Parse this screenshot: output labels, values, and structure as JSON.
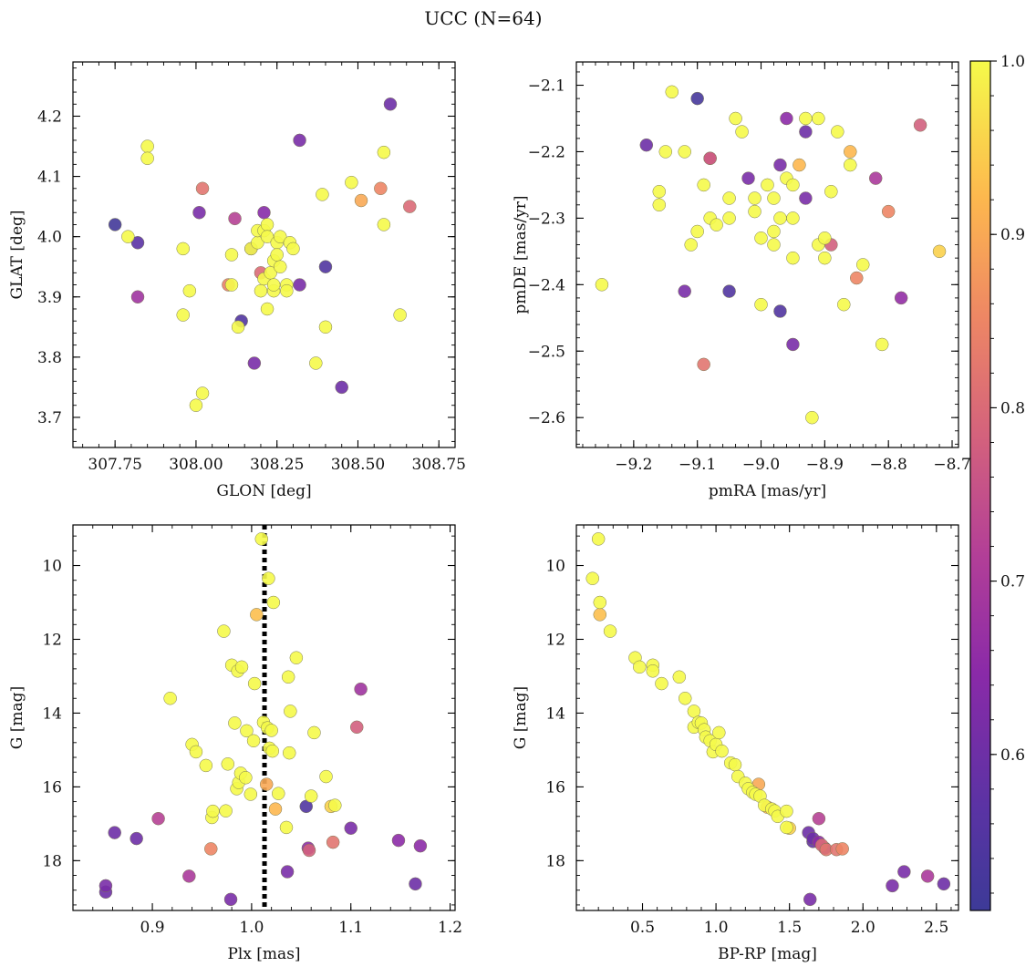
{
  "title": "UCC (N=64)",
  "colorbar": {
    "cmap": "plasma",
    "range": [
      0.51,
      1.0
    ],
    "ticks": [
      0.6,
      0.7,
      0.8,
      0.9,
      1.0
    ],
    "tick_labels": [
      "0.6",
      "0.7",
      "0.8",
      "0.9",
      "1.0"
    ]
  },
  "chart_data": [
    {
      "type": "scatter",
      "xlabel": "GLON [deg]",
      "ylabel": "GLAT [deg]",
      "xlim": [
        307.62,
        308.8
      ],
      "ylim": [
        3.65,
        4.29
      ],
      "xticks": [
        307.75,
        308.0,
        308.25,
        308.5,
        308.75
      ],
      "xtick_labels": [
        "307.75",
        "308.00",
        "308.25",
        "308.50",
        "308.75"
      ],
      "yticks": [
        3.7,
        3.8,
        3.9,
        4.0,
        4.1,
        4.2
      ],
      "ytick_labels": [
        "3.7",
        "3.8",
        "3.9",
        "4.0",
        "4.1",
        "4.2"
      ],
      "points": [
        [
          307.75,
          4.02,
          0.52
        ],
        [
          307.82,
          3.99,
          0.57
        ],
        [
          307.79,
          4.0,
          1.0
        ],
        [
          307.82,
          3.9,
          0.68
        ],
        [
          307.85,
          4.15,
          1.0
        ],
        [
          307.85,
          4.13,
          1.0
        ],
        [
          307.96,
          3.98,
          1.0
        ],
        [
          307.96,
          3.87,
          1.0
        ],
        [
          307.98,
          3.91,
          1.0
        ],
        [
          308.0,
          3.72,
          1.0
        ],
        [
          308.01,
          4.04,
          0.62
        ],
        [
          308.02,
          3.74,
          1.0
        ],
        [
          308.02,
          4.08,
          0.82
        ],
        [
          308.1,
          3.92,
          0.84
        ],
        [
          308.11,
          3.92,
          1.0
        ],
        [
          308.11,
          3.97,
          1.0
        ],
        [
          308.12,
          4.03,
          0.72
        ],
        [
          308.13,
          3.85,
          1.0
        ],
        [
          308.14,
          3.86,
          0.55
        ],
        [
          308.17,
          3.98,
          0.62
        ],
        [
          308.17,
          3.98,
          1.0
        ],
        [
          308.18,
          3.79,
          0.62
        ],
        [
          308.19,
          3.99,
          1.0
        ],
        [
          308.19,
          4.01,
          1.0
        ],
        [
          308.2,
          3.94,
          0.8
        ],
        [
          308.2,
          3.91,
          1.0
        ],
        [
          308.21,
          4.04,
          0.64
        ],
        [
          308.21,
          4.01,
          1.0
        ],
        [
          308.21,
          3.93,
          1.0
        ],
        [
          308.22,
          3.88,
          1.0
        ],
        [
          308.22,
          4.02,
          1.0
        ],
        [
          308.22,
          4.0,
          1.0
        ],
        [
          308.23,
          3.94,
          1.0
        ],
        [
          308.24,
          3.91,
          1.0
        ],
        [
          308.24,
          3.92,
          1.0
        ],
        [
          308.24,
          3.96,
          1.0
        ],
        [
          308.25,
          3.99,
          1.0
        ],
        [
          308.25,
          3.97,
          1.0
        ],
        [
          308.26,
          3.95,
          1.0
        ],
        [
          308.26,
          4.0,
          1.0
        ],
        [
          308.28,
          3.92,
          1.0
        ],
        [
          308.28,
          3.91,
          1.0
        ],
        [
          308.29,
          3.99,
          1.0
        ],
        [
          308.3,
          3.98,
          1.0
        ],
        [
          308.32,
          4.16,
          0.62
        ],
        [
          308.32,
          3.92,
          0.62
        ],
        [
          308.37,
          3.79,
          1.0
        ],
        [
          308.39,
          4.07,
          1.0
        ],
        [
          308.4,
          3.95,
          0.55
        ],
        [
          308.4,
          3.85,
          1.0
        ],
        [
          308.45,
          3.75,
          0.6
        ],
        [
          308.48,
          4.09,
          1.0
        ],
        [
          308.51,
          4.06,
          0.9
        ],
        [
          308.57,
          4.08,
          0.85
        ],
        [
          308.58,
          4.14,
          1.0
        ],
        [
          308.58,
          4.02,
          1.0
        ],
        [
          308.6,
          4.22,
          0.6
        ],
        [
          308.63,
          3.87,
          1.0
        ],
        [
          308.66,
          4.05,
          0.8
        ]
      ]
    },
    {
      "type": "scatter",
      "xlabel": "pmRA [mas/yr]",
      "ylabel": "pmDE [mas/yr]",
      "xlim": [
        -9.29,
        -8.69
      ],
      "ylim": [
        -2.645,
        -2.065
      ],
      "xticks": [
        -9.2,
        -9.1,
        -9.0,
        -8.9,
        -8.8,
        -8.7
      ],
      "xtick_labels": [
        "−9.2",
        "−9.1",
        "−9.0",
        "−8.9",
        "−8.8",
        "−8.7"
      ],
      "yticks": [
        -2.6,
        -2.5,
        -2.4,
        -2.3,
        -2.2,
        -2.1
      ],
      "ytick_labels": [
        "−2.6",
        "−2.5",
        "−2.4",
        "−2.3",
        "−2.2",
        "−2.1"
      ],
      "points": [
        [
          -9.25,
          -2.4,
          1.0
        ],
        [
          -9.18,
          -2.19,
          0.6
        ],
        [
          -9.16,
          -2.26,
          1.0
        ],
        [
          -9.16,
          -2.28,
          1.0
        ],
        [
          -9.15,
          -2.2,
          1.0
        ],
        [
          -9.14,
          -2.11,
          1.0
        ],
        [
          -9.12,
          -2.2,
          1.0
        ],
        [
          -9.12,
          -2.41,
          0.62
        ],
        [
          -9.11,
          -2.34,
          1.0
        ],
        [
          -9.1,
          -2.32,
          1.0
        ],
        [
          -9.1,
          -2.12,
          0.53
        ],
        [
          -9.09,
          -2.52,
          0.82
        ],
        [
          -9.09,
          -2.25,
          1.0
        ],
        [
          -9.08,
          -2.21,
          0.65
        ],
        [
          -9.08,
          -2.21,
          0.78
        ],
        [
          -9.08,
          -2.3,
          1.0
        ],
        [
          -9.07,
          -2.31,
          1.0
        ],
        [
          -9.05,
          -2.27,
          1.0
        ],
        [
          -9.05,
          -2.3,
          1.0
        ],
        [
          -9.05,
          -2.41,
          0.55
        ],
        [
          -9.04,
          -2.15,
          1.0
        ],
        [
          -9.03,
          -2.17,
          1.0
        ],
        [
          -9.02,
          -2.24,
          0.62
        ],
        [
          -9.01,
          -2.29,
          1.0
        ],
        [
          -9.01,
          -2.27,
          1.0
        ],
        [
          -9.0,
          -2.43,
          1.0
        ],
        [
          -9.0,
          -2.33,
          1.0
        ],
        [
          -8.99,
          -2.25,
          1.0
        ],
        [
          -8.98,
          -2.32,
          1.0
        ],
        [
          -8.98,
          -2.34,
          1.0
        ],
        [
          -8.98,
          -2.27,
          1.0
        ],
        [
          -8.97,
          -2.3,
          1.0
        ],
        [
          -8.97,
          -2.22,
          0.62
        ],
        [
          -8.97,
          -2.44,
          0.55
        ],
        [
          -8.96,
          -2.15,
          0.65
        ],
        [
          -8.96,
          -2.24,
          1.0
        ],
        [
          -8.95,
          -2.25,
          1.0
        ],
        [
          -8.95,
          -2.36,
          1.0
        ],
        [
          -8.95,
          -2.3,
          1.0
        ],
        [
          -8.95,
          -2.49,
          0.62
        ],
        [
          -8.94,
          -2.22,
          0.92
        ],
        [
          -8.93,
          -2.15,
          1.0
        ],
        [
          -8.93,
          -2.27,
          0.62
        ],
        [
          -8.93,
          -2.17,
          0.6
        ],
        [
          -8.92,
          -2.6,
          1.0
        ],
        [
          -8.91,
          -2.34,
          1.0
        ],
        [
          -8.91,
          -2.15,
          1.0
        ],
        [
          -8.9,
          -2.36,
          1.0
        ],
        [
          -8.9,
          -2.33,
          1.0
        ],
        [
          -8.89,
          -2.26,
          1.0
        ],
        [
          -8.89,
          -2.34,
          0.78
        ],
        [
          -8.88,
          -2.17,
          1.0
        ],
        [
          -8.87,
          -2.43,
          1.0
        ],
        [
          -8.86,
          -2.22,
          1.0
        ],
        [
          -8.86,
          -2.2,
          0.92
        ],
        [
          -8.85,
          -2.39,
          0.85
        ],
        [
          -8.84,
          -2.37,
          1.0
        ],
        [
          -8.82,
          -2.24,
          0.7
        ],
        [
          -8.81,
          -2.49,
          1.0
        ],
        [
          -8.8,
          -2.29,
          0.85
        ],
        [
          -8.78,
          -2.42,
          0.66
        ],
        [
          -8.75,
          -2.16,
          0.78
        ],
        [
          -8.72,
          -2.35,
          0.95
        ]
      ]
    },
    {
      "type": "scatter",
      "xlabel": "Plx [mas]",
      "ylabel": "G [mag]",
      "xlim": [
        0.82,
        1.205
      ],
      "ylim": [
        19.35,
        8.9
      ],
      "inverted_y": true,
      "xticks": [
        0.9,
        1.0,
        1.1,
        1.2
      ],
      "xtick_labels": [
        "0.9",
        "1.0",
        "1.1",
        "1.2"
      ],
      "yticks": [
        10,
        12,
        14,
        16,
        18
      ],
      "ytick_labels": [
        "10",
        "12",
        "14",
        "16",
        "18"
      ],
      "vline": 1.013,
      "points": [
        [
          0.853,
          18.68,
          0.62
        ],
        [
          0.853,
          18.85,
          0.6
        ],
        [
          0.862,
          17.24,
          0.6
        ],
        [
          0.884,
          17.4,
          0.6
        ],
        [
          0.906,
          16.86,
          0.72
        ],
        [
          0.918,
          13.6,
          1.0
        ],
        [
          0.937,
          18.42,
          0.7
        ],
        [
          0.94,
          14.85,
          1.0
        ],
        [
          0.944,
          15.05,
          1.0
        ],
        [
          0.954,
          15.42,
          1.0
        ],
        [
          0.959,
          17.68,
          0.85
        ],
        [
          0.96,
          16.83,
          1.0
        ],
        [
          0.961,
          16.66,
          1.0
        ],
        [
          0.972,
          11.78,
          1.0
        ],
        [
          0.974,
          16.65,
          1.0
        ],
        [
          0.976,
          15.38,
          1.0
        ],
        [
          0.979,
          19.05,
          0.62
        ],
        [
          0.98,
          12.7,
          1.0
        ],
        [
          0.983,
          14.27,
          1.0
        ],
        [
          0.985,
          16.05,
          1.0
        ],
        [
          0.986,
          12.86,
          1.0
        ],
        [
          0.987,
          15.88,
          1.0
        ],
        [
          0.989,
          15.63,
          1.0
        ],
        [
          0.99,
          12.75,
          1.0
        ],
        [
          0.994,
          15.75,
          1.0
        ],
        [
          0.995,
          14.48,
          1.0
        ],
        [
          0.999,
          16.2,
          1.0
        ],
        [
          1.002,
          14.75,
          1.0
        ],
        [
          1.003,
          13.2,
          1.0
        ],
        [
          1.005,
          11.33,
          0.93
        ],
        [
          1.01,
          9.28,
          1.0
        ],
        [
          1.012,
          14.25,
          1.0
        ],
        [
          1.015,
          15.93,
          0.9
        ],
        [
          1.016,
          14.4,
          1.0
        ],
        [
          1.017,
          10.35,
          1.0
        ],
        [
          1.018,
          14.95,
          1.0
        ],
        [
          1.02,
          14.47,
          1.0
        ],
        [
          1.021,
          15.03,
          1.0
        ],
        [
          1.022,
          11.0,
          1.0
        ],
        [
          1.024,
          16.6,
          0.92
        ],
        [
          1.027,
          16.18,
          1.0
        ],
        [
          1.035,
          17.1,
          1.0
        ],
        [
          1.036,
          18.3,
          0.62
        ],
        [
          1.037,
          13.02,
          1.0
        ],
        [
          1.038,
          15.08,
          1.0
        ],
        [
          1.039,
          13.95,
          1.0
        ],
        [
          1.045,
          12.5,
          1.0
        ],
        [
          1.055,
          16.53,
          0.55
        ],
        [
          1.057,
          17.66,
          0.65
        ],
        [
          1.058,
          17.72,
          0.78
        ],
        [
          1.06,
          16.25,
          1.0
        ],
        [
          1.063,
          14.53,
          1.0
        ],
        [
          1.075,
          15.72,
          1.0
        ],
        [
          1.08,
          16.53,
          0.95
        ],
        [
          1.082,
          17.5,
          0.82
        ],
        [
          1.084,
          16.5,
          1.0
        ],
        [
          1.1,
          17.12,
          0.62
        ],
        [
          1.106,
          14.38,
          0.78
        ],
        [
          1.11,
          13.35,
          0.68
        ],
        [
          1.148,
          17.45,
          0.65
        ],
        [
          1.165,
          18.63,
          0.6
        ],
        [
          1.17,
          17.6,
          0.65
        ]
      ]
    },
    {
      "type": "scatter",
      "xlabel": "BP-RP [mag]",
      "ylabel": "G [mag]",
      "xlim": [
        0.05,
        2.65
      ],
      "ylim": [
        19.35,
        8.9
      ],
      "inverted_y": true,
      "xticks": [
        0.5,
        1.0,
        1.5,
        2.0,
        2.5
      ],
      "xtick_labels": [
        "0.5",
        "1.0",
        "1.5",
        "2.0",
        "2.5"
      ],
      "yticks": [
        10,
        12,
        14,
        16,
        18
      ],
      "ytick_labels": [
        "10",
        "12",
        "14",
        "16",
        "18"
      ],
      "points": [
        [
          0.16,
          10.35,
          1.0
        ],
        [
          0.2,
          9.28,
          1.0
        ],
        [
          0.21,
          11.0,
          1.0
        ],
        [
          0.21,
          11.33,
          0.93
        ],
        [
          0.28,
          11.78,
          1.0
        ],
        [
          0.45,
          12.5,
          1.0
        ],
        [
          0.48,
          12.75,
          1.0
        ],
        [
          0.57,
          12.7,
          1.0
        ],
        [
          0.57,
          12.86,
          1.0
        ],
        [
          0.63,
          13.2,
          1.0
        ],
        [
          0.75,
          13.02,
          1.0
        ],
        [
          0.79,
          13.6,
          1.0
        ],
        [
          0.85,
          13.95,
          1.0
        ],
        [
          0.85,
          14.38,
          1.0
        ],
        [
          0.88,
          14.25,
          1.0
        ],
        [
          0.9,
          14.27,
          1.0
        ],
        [
          0.92,
          14.45,
          1.0
        ],
        [
          0.93,
          14.65,
          1.0
        ],
        [
          0.96,
          14.75,
          1.0
        ],
        [
          0.98,
          15.05,
          1.0
        ],
        [
          1.0,
          14.85,
          1.0
        ],
        [
          1.02,
          14.53,
          1.0
        ],
        [
          1.04,
          15.03,
          1.0
        ],
        [
          1.1,
          15.35,
          1.0
        ],
        [
          1.13,
          15.4,
          1.0
        ],
        [
          1.15,
          15.72,
          1.0
        ],
        [
          1.2,
          15.9,
          1.0
        ],
        [
          1.22,
          16.05,
          1.0
        ],
        [
          1.25,
          16.15,
          1.0
        ],
        [
          1.27,
          16.2,
          1.0
        ],
        [
          1.29,
          15.93,
          0.9
        ],
        [
          1.3,
          16.25,
          1.0
        ],
        [
          1.33,
          16.5,
          1.0
        ],
        [
          1.35,
          16.55,
          0.92
        ],
        [
          1.38,
          16.6,
          1.0
        ],
        [
          1.4,
          16.65,
          1.0
        ],
        [
          1.42,
          16.8,
          1.0
        ],
        [
          1.48,
          16.66,
          1.0
        ],
        [
          1.48,
          17.1,
          1.0
        ],
        [
          1.5,
          17.12,
          0.95
        ],
        [
          1.63,
          17.24,
          0.6
        ],
        [
          1.66,
          17.4,
          0.6
        ],
        [
          1.66,
          17.48,
          0.58
        ],
        [
          1.7,
          17.5,
          0.65
        ],
        [
          1.7,
          16.86,
          0.72
        ],
        [
          1.72,
          17.58,
          0.8
        ],
        [
          1.74,
          17.66,
          0.62
        ],
        [
          1.75,
          17.7,
          0.82
        ],
        [
          1.82,
          17.7,
          0.82
        ],
        [
          1.86,
          17.68,
          0.85
        ],
        [
          2.2,
          18.68,
          0.62
        ],
        [
          2.28,
          18.3,
          0.62
        ],
        [
          2.44,
          18.42,
          0.7
        ],
        [
          2.55,
          18.63,
          0.6
        ],
        [
          1.64,
          19.05,
          0.62
        ]
      ]
    }
  ]
}
